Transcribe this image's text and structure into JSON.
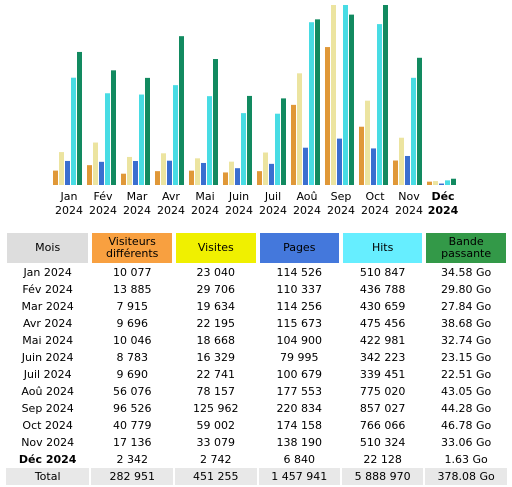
{
  "chart_data": {
    "type": "bar",
    "categories": [
      [
        "Jan",
        "2024"
      ],
      [
        "Fév",
        "2024"
      ],
      [
        "Mar",
        "2024"
      ],
      [
        "Avr",
        "2024"
      ],
      [
        "Mai",
        "2024"
      ],
      [
        "Juin",
        "2024"
      ],
      [
        "Juil",
        "2024"
      ],
      [
        "Aoû",
        "2024"
      ],
      [
        "Sep",
        "2024"
      ],
      [
        "Oct",
        "2024"
      ],
      [
        "Nov",
        "2024"
      ],
      [
        "Déc",
        "2024"
      ]
    ],
    "current_month": 11,
    "series": [
      {
        "name": "Visiteurs différents",
        "color": "#e09838",
        "header_color": "#f8a040",
        "ylim": [
          0,
          125962
        ],
        "values": [
          10077,
          13885,
          7915,
          9696,
          10046,
          8783,
          9690,
          56076,
          96526,
          40779,
          17136,
          2342
        ],
        "value_labels": [
          "10 077",
          "13 885",
          "7 915",
          "9 696",
          "10 046",
          "8 783",
          "9 690",
          "56 076",
          "96 526",
          "40 779",
          "17 136",
          "2 342"
        ]
      },
      {
        "name": "Visites",
        "color": "#ece4a0",
        "header_color": "#f0f000",
        "ylim": [
          0,
          125962
        ],
        "values": [
          23040,
          29706,
          19634,
          22195,
          18668,
          16329,
          22741,
          78157,
          125962,
          59002,
          33079,
          2742
        ],
        "value_labels": [
          "23 040",
          "29 706",
          "19 634",
          "22 195",
          "18 668",
          "16 329",
          "22 741",
          "78 157",
          "125 962",
          "59 002",
          "33 079",
          "2 742"
        ]
      },
      {
        "name": "Pages",
        "color": "#3a6ed0",
        "header_color": "#4478dc",
        "ylim": [
          0,
          857027
        ],
        "values": [
          114526,
          110337,
          114256,
          115673,
          104900,
          79995,
          100679,
          177553,
          220834,
          174158,
          138190,
          6840
        ],
        "value_labels": [
          "114 526",
          "110 337",
          "114 256",
          "115 673",
          "104 900",
          "79 995",
          "100 679",
          "177 553",
          "220 834",
          "174 158",
          "138 190",
          "6 840"
        ]
      },
      {
        "name": "Hits",
        "color": "#48dce4",
        "header_color": "#66eeff",
        "ylim": [
          0,
          857027
        ],
        "values": [
          510847,
          436788,
          430659,
          475456,
          422981,
          342223,
          339451,
          775020,
          857027,
          766066,
          510324,
          22128
        ],
        "value_labels": [
          "510 847",
          "436 788",
          "430 659",
          "475 456",
          "422 981",
          "342 223",
          "339 451",
          "775 020",
          "857 027",
          "766 066",
          "510 324",
          "22 128"
        ]
      },
      {
        "name": "Bande passante",
        "color": "#128a60",
        "header_color": "#339948",
        "ylim": [
          0,
          46.78
        ],
        "values": [
          34.58,
          29.8,
          27.84,
          38.68,
          32.74,
          23.15,
          22.51,
          43.05,
          44.28,
          46.78,
          33.06,
          1.63
        ],
        "value_labels": [
          "34.58 Go",
          "29.80 Go",
          "27.84 Go",
          "38.68 Go",
          "32.74 Go",
          "23.15 Go",
          "22.51 Go",
          "43.05 Go",
          "44.28 Go",
          "46.78 Go",
          "33.06 Go",
          "1.63 Go"
        ]
      }
    ]
  },
  "table": {
    "header": "Mois",
    "total_label": "Total",
    "totals": [
      "282 951",
      "451 255",
      "1 457 941",
      "5 888 970",
      "378.08 Go"
    ]
  }
}
